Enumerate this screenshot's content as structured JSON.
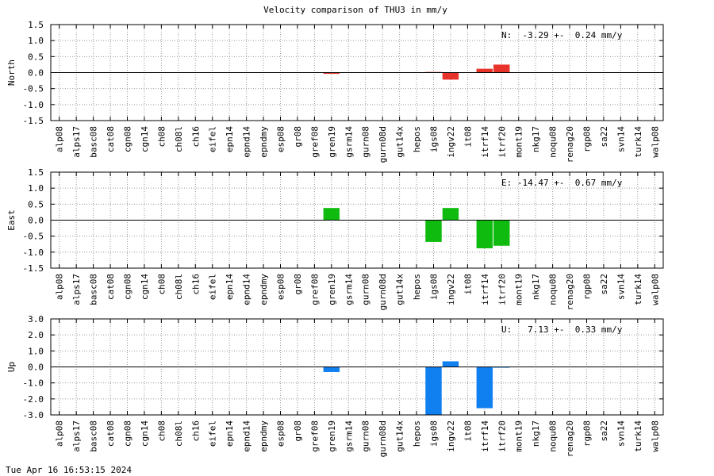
{
  "title": "Velocity comparison of THU3 in mm/y",
  "footer": "Tue Apr 16 16:53:15 2024",
  "chart_data": [
    {
      "type": "bar",
      "ylabel": "North",
      "annotation": "N:  -3.29 +-  0.24 mm/y",
      "color": "#e8332b",
      "grid": true,
      "categories": [
        "alp08",
        "alps17",
        "basc08",
        "cat08",
        "cgn08",
        "cgn14",
        "ch08",
        "ch08l",
        "ch16",
        "eifel",
        "epn14",
        "epnd14",
        "epndmy",
        "esp08",
        "gr08",
        "gref08",
        "gren19",
        "gsrm14",
        "gurn08",
        "gurn08d",
        "gut14x",
        "hepos",
        "igs08",
        "ingv22",
        "it08",
        "itrf14",
        "itrf20",
        "mont19",
        "nkg17",
        "noqu08",
        "renag20",
        "rgp08",
        "sa22",
        "svn14",
        "turk14",
        "walp08"
      ],
      "values": [
        null,
        null,
        null,
        null,
        null,
        null,
        null,
        null,
        null,
        null,
        null,
        null,
        null,
        null,
        null,
        null,
        -0.04,
        null,
        null,
        null,
        null,
        null,
        0.02,
        -0.22,
        null,
        0.12,
        0.25,
        null,
        null,
        null,
        null,
        null,
        null,
        null,
        null,
        null
      ],
      "ylim": [
        -1.5,
        1.5
      ],
      "yticks": [
        {
          "value": 1.5,
          "label": "1.5"
        },
        {
          "value": 1,
          "label": "1.0"
        },
        {
          "value": 0.5,
          "label": "0.5"
        },
        {
          "value": 0,
          "label": "0.0"
        },
        {
          "value": -0.5,
          "label": "-0.5"
        },
        {
          "value": -1,
          "label": "-1.0"
        },
        {
          "value": -1.5,
          "label": "-1.5"
        }
      ]
    },
    {
      "type": "bar",
      "ylabel": "East",
      "annotation": "E: -14.47 +-  0.67 mm/y",
      "color": "#10bb10",
      "grid": true,
      "categories": [
        "alp08",
        "alps17",
        "basc08",
        "cat08",
        "cgn08",
        "cgn14",
        "ch08",
        "ch08l",
        "ch16",
        "eifel",
        "epn14",
        "epnd14",
        "epndmy",
        "esp08",
        "gr08",
        "gref08",
        "gren19",
        "gsrm14",
        "gurn08",
        "gurn08d",
        "gut14x",
        "hepos",
        "igs08",
        "ingv22",
        "it08",
        "itrf14",
        "itrf20",
        "mont19",
        "nkg17",
        "noqu08",
        "renag20",
        "rgp08",
        "sa22",
        "svn14",
        "turk14",
        "walp08"
      ],
      "values": [
        null,
        null,
        null,
        null,
        null,
        null,
        null,
        null,
        null,
        null,
        null,
        null,
        null,
        null,
        null,
        null,
        0.38,
        null,
        null,
        null,
        null,
        null,
        -0.68,
        0.38,
        null,
        -0.88,
        -0.8,
        null,
        null,
        null,
        null,
        null,
        null,
        null,
        null,
        null
      ],
      "ylim": [
        -1.5,
        1.5
      ],
      "yticks": [
        {
          "value": 1.5,
          "label": "1.5"
        },
        {
          "value": 1,
          "label": "1.0"
        },
        {
          "value": 0.5,
          "label": "0.5"
        },
        {
          "value": 0,
          "label": "0.0"
        },
        {
          "value": -0.5,
          "label": "-0.5"
        },
        {
          "value": -1,
          "label": "-1.0"
        },
        {
          "value": -1.5,
          "label": "-1.5"
        }
      ]
    },
    {
      "type": "bar",
      "ylabel": "Up",
      "annotation": "U:   7.13 +-  0.33 mm/y",
      "color": "#1080f0",
      "grid": true,
      "categories": [
        "alp08",
        "alps17",
        "basc08",
        "cat08",
        "cgn08",
        "cgn14",
        "ch08",
        "ch08l",
        "ch16",
        "eifel",
        "epn14",
        "epnd14",
        "epndmy",
        "esp08",
        "gr08",
        "gref08",
        "gren19",
        "gsrm14",
        "gurn08",
        "gurn08d",
        "gut14x",
        "hepos",
        "igs08",
        "ingv22",
        "it08",
        "itrf14",
        "itrf20",
        "mont19",
        "nkg17",
        "noqu08",
        "renag20",
        "rgp08",
        "sa22",
        "svn14",
        "turk14",
        "walp08"
      ],
      "values": [
        null,
        null,
        null,
        null,
        null,
        null,
        null,
        null,
        null,
        null,
        null,
        null,
        null,
        null,
        null,
        null,
        -0.32,
        null,
        null,
        null,
        null,
        null,
        -3.0,
        0.35,
        null,
        -2.58,
        -0.05,
        null,
        null,
        null,
        null,
        null,
        null,
        null,
        null,
        null
      ],
      "ylim": [
        -3,
        3
      ],
      "yticks": [
        {
          "value": 3,
          "label": "3.0"
        },
        {
          "value": 2,
          "label": "2.0"
        },
        {
          "value": 1,
          "label": "1.0"
        },
        {
          "value": 0,
          "label": "0.0"
        },
        {
          "value": -1,
          "label": "-1.0"
        },
        {
          "value": -2,
          "label": "-2.0"
        },
        {
          "value": -3,
          "label": "-3.0"
        }
      ]
    }
  ]
}
